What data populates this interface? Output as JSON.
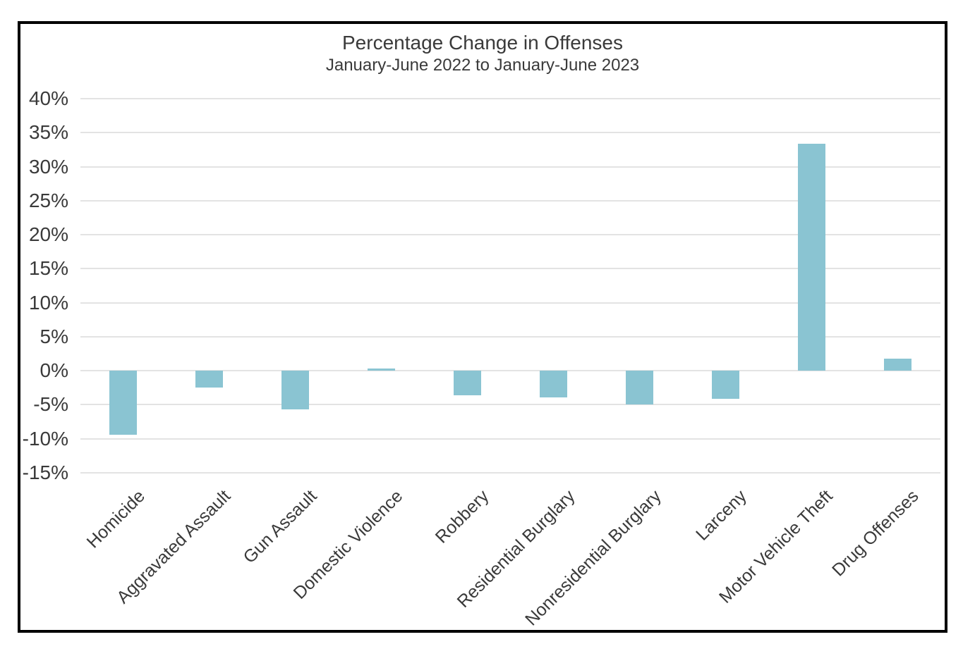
{
  "chart_data": {
    "type": "bar",
    "title": "Percentage Change in Offenses",
    "subtitle": "January-June 2022 to January-June 2023",
    "categories": [
      "Homicide",
      "Aggravated Assault",
      "Gun Assault",
      "Domestic Violence",
      "Robbery",
      "Residential Burglary",
      "Nonresidential Burglary",
      "Larceny",
      "Motor Vehicle Theft",
      "Drug Offenses"
    ],
    "values": [
      -9.4,
      -2.5,
      -5.7,
      0.3,
      -3.6,
      -3.9,
      -5.0,
      -4.1,
      33.4,
      1.8
    ],
    "value_suffix": "%",
    "xlabel": "",
    "ylabel": "",
    "ylim": [
      -15,
      40
    ],
    "y_ticks": [
      {
        "label": "40%",
        "value": 40
      },
      {
        "label": "35%",
        "value": 35
      },
      {
        "label": "30%",
        "value": 30
      },
      {
        "label": "25%",
        "value": 25
      },
      {
        "label": "20%",
        "value": 20
      },
      {
        "label": "15%",
        "value": 15
      },
      {
        "label": "10%",
        "value": 10
      },
      {
        "label": "5%",
        "value": 5
      },
      {
        "label": "0%",
        "value": 0
      },
      {
        "label": "-5%",
        "value": -5
      },
      {
        "label": "-10%",
        "value": -10
      },
      {
        "label": "-15%",
        "value": -15
      }
    ],
    "grid": "horizontal",
    "legend": "none",
    "bar_color": "#8AC4D2",
    "gridline_color": "#E3E3E3",
    "text_color": "#3A3A3A",
    "frame_border_color": "#000000"
  }
}
